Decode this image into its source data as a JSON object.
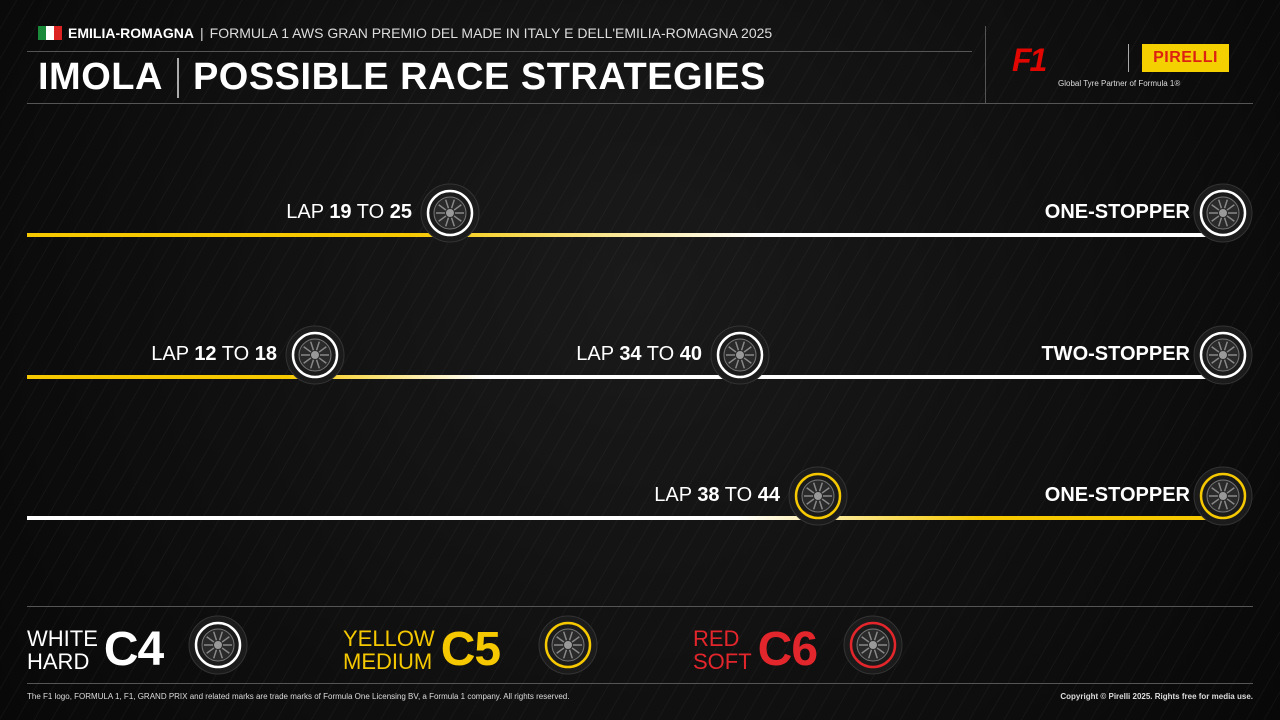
{
  "header": {
    "region": "EMILIA-ROMAGNA",
    "event": "FORMULA 1 AWS GRAN PREMIO DEL MADE IN ITALY E DELL'EMILIA-ROMAGNA 2025",
    "circuit": "IMOLA",
    "title": "POSSIBLE RACE STRATEGIES"
  },
  "logos": {
    "f1": "F1",
    "pirelli": "PIRELLI",
    "tagline": "Global Tyre Partner of Formula 1®"
  },
  "colors": {
    "hard": "#ffffff",
    "medium": "#f5c800",
    "soft": "#e3262b",
    "background": "#0c0c0c"
  },
  "strategies": [
    {
      "name": "ONE-STOPPER",
      "compounds": [
        "medium",
        "hard"
      ],
      "stops": [
        {
          "lap_word": "LAP",
          "from": "19",
          "to_word": "TO",
          "to": "25"
        }
      ]
    },
    {
      "name": "TWO-STOPPER",
      "compounds": [
        "medium",
        "hard",
        "hard"
      ],
      "stops": [
        {
          "lap_word": "LAP",
          "from": "12",
          "to_word": "TO",
          "to": "18"
        },
        {
          "lap_word": "LAP",
          "from": "34",
          "to_word": "TO",
          "to": "40"
        }
      ]
    },
    {
      "name": "ONE-STOPPER",
      "compounds": [
        "hard",
        "medium"
      ],
      "stops": [
        {
          "lap_word": "LAP",
          "from": "38",
          "to_word": "TO",
          "to": "44"
        }
      ]
    }
  ],
  "legend": [
    {
      "color_name": "WHITE",
      "type": "HARD",
      "compound": "C4",
      "key": "hard"
    },
    {
      "color_name": "YELLOW",
      "type": "MEDIUM",
      "compound": "C5",
      "key": "medium"
    },
    {
      "color_name": "RED",
      "type": "SOFT",
      "compound": "C6",
      "key": "soft"
    }
  ],
  "footer": {
    "left": "The F1 logo, FORMULA 1, F1, GRAND PRIX and related marks are trade marks of Formula One Licensing BV, a Formula 1 company. All rights reserved.",
    "right": "Copyright © Pirelli 2025. Rights free for media use."
  }
}
